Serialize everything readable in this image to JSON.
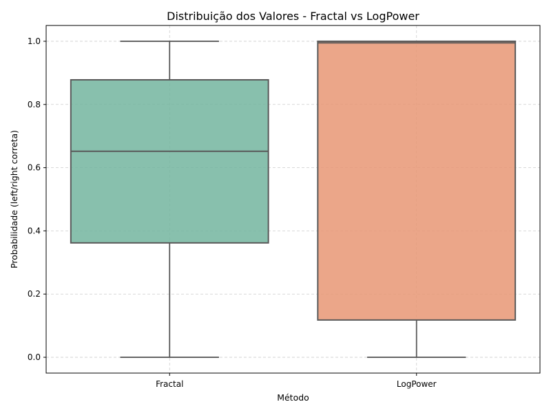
{
  "chart_data": {
    "type": "box",
    "title": "Distribuição dos Valores - Fractal vs LogPower",
    "xlabel": "Método",
    "ylabel": "Probabilidade (left/right correta)",
    "ylim": [
      -0.05,
      1.05
    ],
    "yticks": [
      0.0,
      0.2,
      0.4,
      0.6,
      0.8,
      1.0
    ],
    "ytick_labels": [
      "0.0",
      "0.2",
      "0.4",
      "0.6",
      "0.8",
      "1.0"
    ],
    "grid": true,
    "categories": [
      "Fractal",
      "LogPower"
    ],
    "boxes": [
      {
        "category": "Fractal",
        "whisker_low": 0.0,
        "q1": 0.362,
        "median": 0.652,
        "q3": 0.878,
        "whisker_high": 1.0,
        "color": "#73b59f"
      },
      {
        "category": "LogPower",
        "whisker_low": 0.0,
        "q1": 0.118,
        "median": 0.995,
        "q3": 1.0,
        "whisker_high": 1.0,
        "color": "#e89774"
      }
    ]
  }
}
